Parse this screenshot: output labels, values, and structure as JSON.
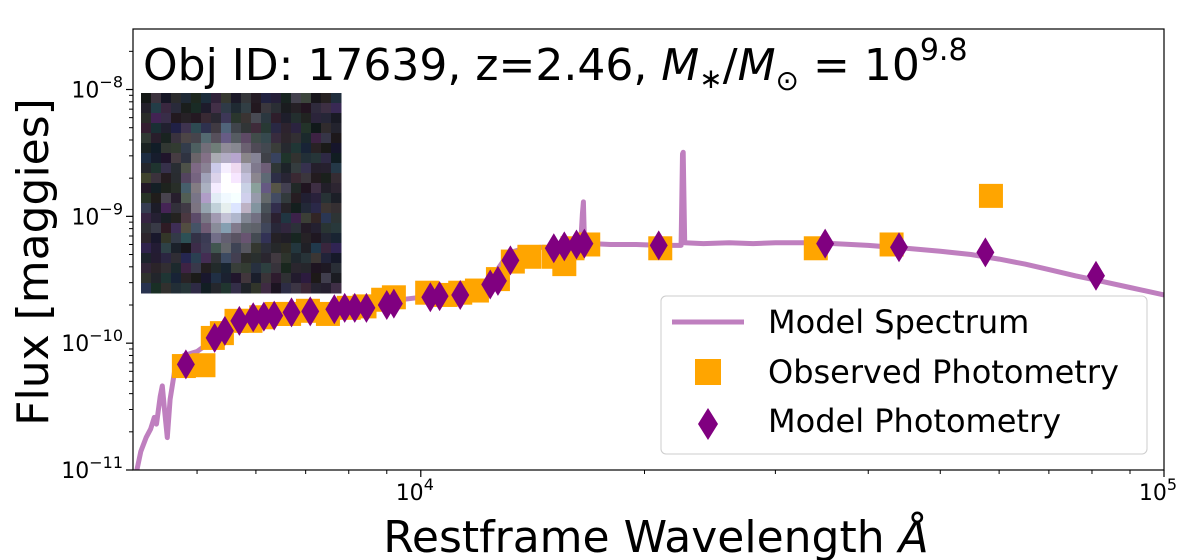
{
  "chart_data": {
    "type": "scatter",
    "title_prefix": "Obj ID: 17639, z=2.46, ",
    "title_math_base": "10",
    "title_math_exp": "9.8",
    "xlabel": "Restframe Wavelength ",
    "xlabel_unit": "Å",
    "ylabel": "Flux [maggies]",
    "x_scale": "log",
    "y_scale": "log",
    "xlim": [
      4100,
      100000
    ],
    "ylim": [
      1e-11,
      3e-08
    ],
    "x_ticks": [
      {
        "value": 10000,
        "base": "10",
        "exp": "4"
      },
      {
        "value": 100000,
        "base": "10",
        "exp": "5"
      }
    ],
    "y_ticks": [
      {
        "value": 1e-11,
        "base": "10",
        "exp": "−11"
      },
      {
        "value": 1e-10,
        "base": "10",
        "exp": "−10"
      },
      {
        "value": 1e-09,
        "base": "10",
        "exp": "−9"
      },
      {
        "value": 1e-08,
        "base": "10",
        "exp": "−8"
      }
    ],
    "legend": {
      "position": "lower-right",
      "entries": [
        "Model Spectrum",
        "Observed Photometry",
        "Model Photometry"
      ]
    },
    "colors": {
      "model_spectrum": "#bf7fbf",
      "observed": "#ffa500",
      "model_phot": "#800080"
    },
    "series": [
      {
        "name": "Model Spectrum",
        "kind": "line",
        "points": [
          [
            4150,
            1e-11
          ],
          [
            4200,
            1.4e-11
          ],
          [
            4270,
            1.8e-11
          ],
          [
            4330,
            2.1e-11
          ],
          [
            4380,
            2.6e-11
          ],
          [
            4410,
            2.3e-11
          ],
          [
            4460,
            3.8e-11
          ],
          [
            4490,
            4.6e-11
          ],
          [
            4520,
            3e-11
          ],
          [
            4560,
            1.8e-11
          ],
          [
            4600,
            3.6e-11
          ],
          [
            4680,
            6.8e-11
          ],
          [
            4800,
            8e-11
          ],
          [
            5000,
            8.6e-11
          ],
          [
            5300,
            1.1e-10
          ],
          [
            5600,
            1.35e-10
          ],
          [
            5800,
            1.45e-10
          ],
          [
            6000,
            1.55e-10
          ],
          [
            6300,
            1.65e-10
          ],
          [
            6600,
            1.75e-10
          ],
          [
            7000,
            1.8e-10
          ],
          [
            7400,
            1.85e-10
          ],
          [
            7800,
            1.9e-10
          ],
          [
            8300,
            1.95e-10
          ],
          [
            8800,
            2.05e-10
          ],
          [
            9400,
            2.2e-10
          ],
          [
            10000,
            2.3e-10
          ],
          [
            10600,
            2.35e-10
          ],
          [
            11200,
            2.45e-10
          ],
          [
            11800,
            2.7e-10
          ],
          [
            12200,
            2.9e-10
          ],
          [
            12600,
            3.6e-10
          ],
          [
            12900,
            4.4e-10
          ],
          [
            13200,
            5.2e-10
          ],
          [
            13800,
            5.6e-10
          ],
          [
            14600,
            5.7e-10
          ],
          [
            15400,
            5.6e-10
          ],
          [
            16000,
            5.7e-10
          ],
          [
            16400,
            5.8e-10
          ],
          [
            16500,
            1.05e-09
          ],
          [
            16550,
            1.3e-09
          ],
          [
            16600,
            6.5e-10
          ],
          [
            17000,
            6.1e-10
          ],
          [
            18000,
            6e-10
          ],
          [
            19500,
            6e-10
          ],
          [
            21000,
            5.9e-10
          ],
          [
            22400,
            5.9e-10
          ],
          [
            22500,
            3.1e-09
          ],
          [
            22550,
            3.2e-09
          ],
          [
            22650,
            6.2e-10
          ],
          [
            24000,
            6.1e-10
          ],
          [
            26000,
            6.2e-10
          ],
          [
            28000,
            6.1e-10
          ],
          [
            30000,
            6.2e-10
          ],
          [
            33000,
            6.2e-10
          ],
          [
            36000,
            6.1e-10
          ],
          [
            40000,
            5.9e-10
          ],
          [
            45000,
            5.6e-10
          ],
          [
            50000,
            5.3e-10
          ],
          [
            55000,
            5e-10
          ],
          [
            60000,
            4.6e-10
          ],
          [
            65000,
            4.2e-10
          ],
          [
            70000,
            3.8e-10
          ],
          [
            76000,
            3.4e-10
          ],
          [
            82000,
            3.1e-10
          ],
          [
            90000,
            2.75e-10
          ],
          [
            100000,
            2.4e-10
          ]
        ]
      },
      {
        "name": "Observed Photometry",
        "kind": "square",
        "points": [
          [
            4800,
            6.6e-11
          ],
          [
            5100,
            6.7e-11
          ],
          [
            5250,
            1.1e-10
          ],
          [
            5400,
            1.2e-10
          ],
          [
            5650,
            1.5e-10
          ],
          [
            5900,
            1.5e-10
          ],
          [
            6100,
            1.6e-10
          ],
          [
            6400,
            1.7e-10
          ],
          [
            6650,
            1.7e-10
          ],
          [
            7050,
            1.8e-10
          ],
          [
            7500,
            1.7e-10
          ],
          [
            8000,
            1.9e-10
          ],
          [
            8400,
            1.95e-10
          ],
          [
            8900,
            2.2e-10
          ],
          [
            9200,
            2.3e-10
          ],
          [
            10200,
            2.5e-10
          ],
          [
            10800,
            2.4e-10
          ],
          [
            11300,
            2.5e-10
          ],
          [
            11900,
            2.6e-10
          ],
          [
            12700,
            3.2e-10
          ],
          [
            13300,
            4.4e-10
          ],
          [
            14000,
            4.8e-10
          ],
          [
            15100,
            4.8e-10
          ],
          [
            15600,
            4.2e-10
          ],
          [
            16000,
            5.6e-10
          ],
          [
            16800,
            6e-10
          ],
          [
            21000,
            5.6e-10
          ],
          [
            34000,
            5.6e-10
          ],
          [
            43000,
            6e-10
          ],
          [
            58500,
            1.45e-09
          ]
        ]
      },
      {
        "name": "Model Photometry",
        "kind": "diamond",
        "points": [
          [
            4830,
            6.8e-11
          ],
          [
            5280,
            1.1e-10
          ],
          [
            5450,
            1.25e-10
          ],
          [
            5700,
            1.5e-10
          ],
          [
            5950,
            1.6e-10
          ],
          [
            6150,
            1.62e-10
          ],
          [
            6350,
            1.65e-10
          ],
          [
            6700,
            1.75e-10
          ],
          [
            7100,
            1.78e-10
          ],
          [
            7650,
            1.85e-10
          ],
          [
            7900,
            1.9e-10
          ],
          [
            8150,
            1.9e-10
          ],
          [
            8450,
            1.9e-10
          ],
          [
            9000,
            2e-10
          ],
          [
            9200,
            2.05e-10
          ],
          [
            10300,
            2.3e-10
          ],
          [
            10600,
            2.35e-10
          ],
          [
            11300,
            2.4e-10
          ],
          [
            12400,
            2.9e-10
          ],
          [
            12700,
            3.1e-10
          ],
          [
            13200,
            4.5e-10
          ],
          [
            15100,
            5.6e-10
          ],
          [
            15600,
            5.8e-10
          ],
          [
            16200,
            6e-10
          ],
          [
            16600,
            6.1e-10
          ],
          [
            20900,
            5.9e-10
          ],
          [
            35000,
            6.1e-10
          ],
          [
            44000,
            5.7e-10
          ],
          [
            57500,
            5.2e-10
          ],
          [
            81000,
            3.4e-10
          ]
        ]
      }
    ]
  }
}
